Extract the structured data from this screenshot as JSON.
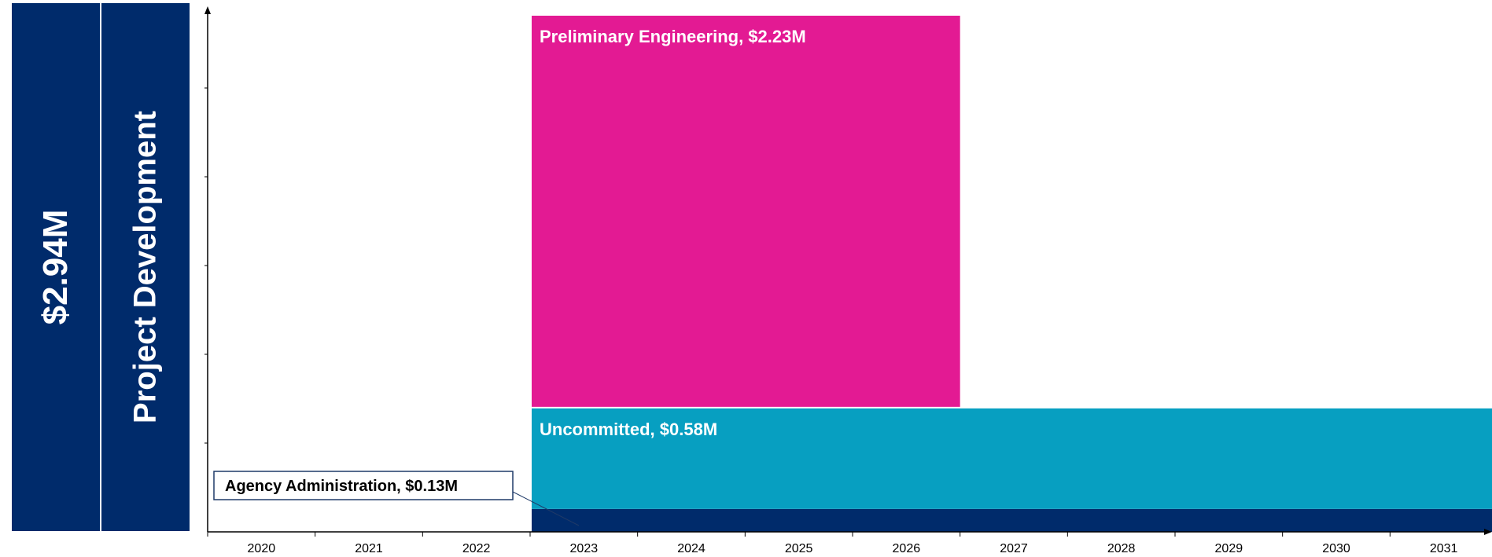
{
  "panels": {
    "total": "$2.94M",
    "category": "Project Development"
  },
  "colors": {
    "panel": "#002b6b",
    "preliminary_engineering": "#e31a93",
    "uncommitted": "#079fc1",
    "agency_administration": "#002b6b",
    "axis": "#000000"
  },
  "chart_data": {
    "type": "bar",
    "x_categories": [
      "2020",
      "2021",
      "2022",
      "2023",
      "2024",
      "2025",
      "2026",
      "2027",
      "2028",
      "2029",
      "2030",
      "2031"
    ],
    "series": [
      {
        "name": "Agency Administration",
        "label": "Agency Administration, $0.13M",
        "value_millions": 0.13,
        "start": "2023",
        "end": "2031",
        "color": "#002b6b",
        "label_style": "callout"
      },
      {
        "name": "Uncommitted",
        "label": "Uncommitted, $0.58M",
        "value_millions": 0.58,
        "start": "2023",
        "end": "2031",
        "color": "#079fc1",
        "label_style": "inside"
      },
      {
        "name": "Preliminary Engineering",
        "label": "Preliminary Engineering, $2.23M",
        "value_millions": 2.23,
        "start": "2023",
        "end": "2026",
        "color": "#e31a93",
        "label_style": "inside"
      }
    ],
    "total_millions": 2.94,
    "grid": false
  }
}
